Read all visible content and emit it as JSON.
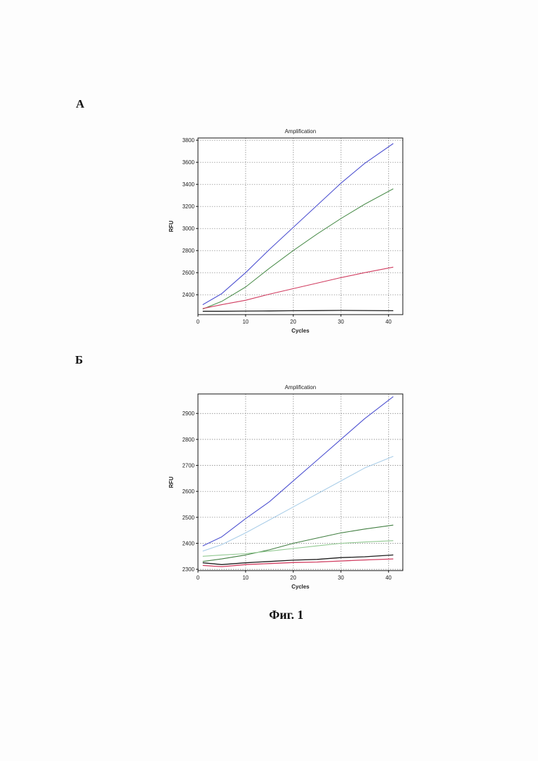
{
  "panels": {
    "a_label": "А",
    "b_label": "Б"
  },
  "caption": "Фиг. 1",
  "chart_data": [
    {
      "type": "line",
      "title": "Amplification",
      "xlabel": "Cycles",
      "ylabel": "RFU",
      "xlim": [
        0,
        43
      ],
      "ylim": [
        2220,
        3820
      ],
      "xticks": [
        0,
        10,
        20,
        30,
        40
      ],
      "yticks": [
        2400,
        2600,
        2800,
        3000,
        3200,
        3400,
        3600,
        3800
      ],
      "grid": true,
      "x": [
        1,
        5,
        10,
        15,
        20,
        25,
        30,
        35,
        41
      ],
      "series": [
        {
          "color": "#4b4fd0",
          "values": [
            2310,
            2410,
            2600,
            2810,
            3010,
            3210,
            3410,
            3590,
            3770
          ]
        },
        {
          "color": "#4e8f4e",
          "values": [
            2270,
            2340,
            2470,
            2640,
            2800,
            2950,
            3090,
            3220,
            3360
          ]
        },
        {
          "color": "#d03a5e",
          "values": [
            2275,
            2310,
            2350,
            2405,
            2455,
            2505,
            2555,
            2600,
            2650
          ]
        },
        {
          "color": "#1a1a1a",
          "values": [
            2250,
            2250,
            2252,
            2253,
            2255,
            2256,
            2258,
            2257,
            2255
          ]
        }
      ]
    },
    {
      "type": "line",
      "title": "Amplification",
      "xlabel": "Cycles",
      "ylabel": "RFU",
      "xlim": [
        0,
        43
      ],
      "ylim": [
        2295,
        2975
      ],
      "xticks": [
        0,
        10,
        20,
        30,
        40
      ],
      "yticks": [
        2300,
        2400,
        2500,
        2600,
        2700,
        2800,
        2900
      ],
      "grid": true,
      "x": [
        1,
        5,
        10,
        15,
        20,
        25,
        30,
        35,
        41
      ],
      "series": [
        {
          "color": "#4b4fd0",
          "values": [
            2390,
            2425,
            2495,
            2560,
            2640,
            2720,
            2800,
            2880,
            2965
          ]
        },
        {
          "color": "#a9cde8",
          "values": [
            2370,
            2395,
            2440,
            2490,
            2540,
            2590,
            2640,
            2690,
            2735
          ]
        },
        {
          "color": "#3f7d3f",
          "values": [
            2330,
            2340,
            2355,
            2375,
            2400,
            2420,
            2440,
            2455,
            2470
          ]
        },
        {
          "color": "#8fc88f",
          "values": [
            2350,
            2355,
            2360,
            2370,
            2380,
            2390,
            2400,
            2405,
            2410
          ]
        },
        {
          "color": "#1a1a1a",
          "values": [
            2325,
            2318,
            2325,
            2330,
            2335,
            2338,
            2345,
            2348,
            2355
          ]
        },
        {
          "color": "#d03a5e",
          "values": [
            2315,
            2310,
            2318,
            2322,
            2326,
            2328,
            2332,
            2336,
            2340
          ]
        }
      ]
    }
  ]
}
